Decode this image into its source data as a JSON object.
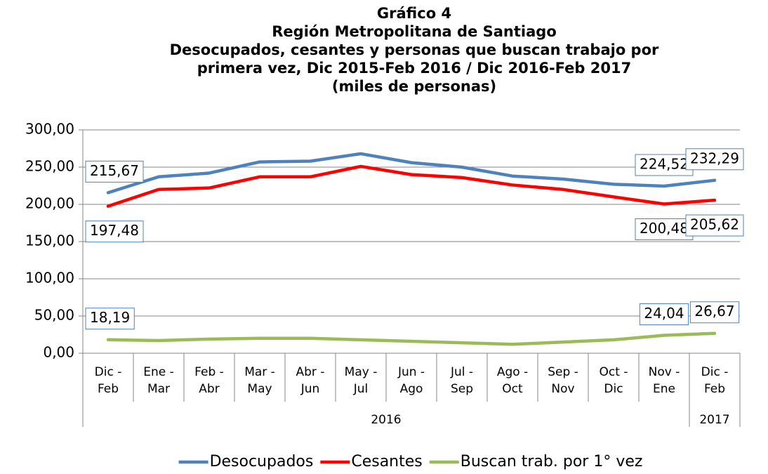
{
  "chart_data": {
    "type": "line",
    "title": [
      "Gráfico 4",
      "Región Metropolitana de Santiago",
      "Desocupados, cesantes y personas que buscan trabajo por",
      "primera vez, Dic 2015-Feb 2016 / Dic 2016-Feb 2017",
      "(miles de personas)"
    ],
    "category_groups": [
      {
        "label": "2016",
        "categories": [
          "Dic - Feb",
          "Ene - Mar",
          "Feb - Abr",
          "Mar - May",
          "Abr - Jun",
          "May - Jul",
          "Jun - Ago",
          "Jul - Sep",
          "Ago - Oct",
          "Sep - Nov",
          "Oct - Dic",
          "Nov - Ene"
        ]
      },
      {
        "label": "2017",
        "categories": [
          "Dic - Feb"
        ]
      }
    ],
    "series": [
      {
        "name": "Desocupados",
        "color": "#4f81bd",
        "values": [
          215.67,
          237,
          242,
          257,
          258,
          268,
          256,
          250,
          238,
          234,
          227,
          224.52,
          232.29
        ],
        "value_labels": [
          "215,67",
          null,
          null,
          null,
          null,
          null,
          null,
          null,
          null,
          null,
          null,
          "224,52",
          "232,29"
        ]
      },
      {
        "name": "Cesantes",
        "color": "#ff0000",
        "values": [
          197.48,
          220,
          222,
          237,
          237,
          251,
          240,
          236,
          226,
          220,
          210,
          200.48,
          205.62
        ],
        "value_labels": [
          "197,48",
          null,
          null,
          null,
          null,
          null,
          null,
          null,
          null,
          null,
          null,
          "200,48",
          "205,62"
        ]
      },
      {
        "name": "Buscan trab. por 1° vez",
        "color": "#9bbb59",
        "values": [
          18.19,
          17,
          19,
          20,
          20,
          18,
          16,
          14,
          12,
          15,
          18,
          24.04,
          26.67
        ],
        "value_labels": [
          "18,19",
          null,
          null,
          null,
          null,
          null,
          null,
          null,
          null,
          null,
          null,
          "24,04",
          "26,67"
        ]
      }
    ],
    "ylim": [
      0,
      300
    ],
    "yticks": [
      {
        "value": 0,
        "label": "0,00"
      },
      {
        "value": 50,
        "label": "50,00"
      },
      {
        "value": 100,
        "label": "100,00"
      },
      {
        "value": 150,
        "label": "150,00"
      },
      {
        "value": 200,
        "label": "200,00"
      },
      {
        "value": 250,
        "label": "250,00"
      },
      {
        "value": 300,
        "label": "300,00"
      }
    ],
    "grid": true,
    "legend": "bottom"
  }
}
